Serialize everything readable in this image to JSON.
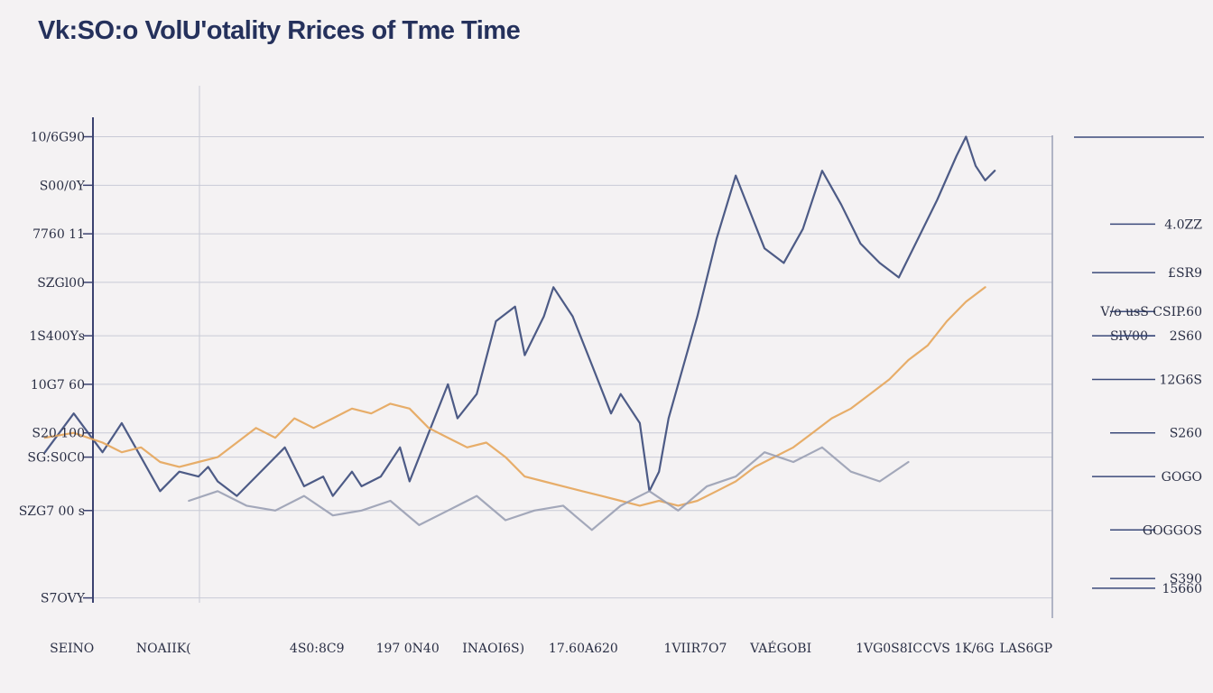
{
  "chart_data": {
    "type": "line",
    "title": "Vk:SO:o VolU'otality Rrices of Tme Time",
    "xlabel": "",
    "ylabel": "",
    "ylim": [
      0,
      10
    ],
    "xlim": [
      0,
      100
    ],
    "grid": true,
    "y_ticks": [
      {
        "value": 9.6,
        "label": "10/6G90"
      },
      {
        "value": 8.6,
        "label": "S00/0Y"
      },
      {
        "value": 7.6,
        "label": "7760  11"
      },
      {
        "value": 6.6,
        "label": "SZGl00"
      },
      {
        "value": 5.5,
        "label": "1S400Ys"
      },
      {
        "value": 4.5,
        "label": "10G7 60"
      },
      {
        "value": 3.5,
        "label": "S20 100"
      },
      {
        "value": 3.0,
        "label": "SG:S0C0"
      },
      {
        "value": 1.9,
        "label": "SZG7 00 s"
      },
      {
        "value": 0.1,
        "label": "S7OVY"
      }
    ],
    "x_ticks": [
      {
        "value": -4.5,
        "label": "SEINO"
      },
      {
        "value": 4.5,
        "label": "NOAIIK("
      },
      {
        "value": 20.5,
        "label": "4S0:8C9"
      },
      {
        "value": 29.5,
        "label": "197 0N40"
      },
      {
        "value": 38.5,
        "label": "INAOI6S)"
      },
      {
        "value": 47.5,
        "label": "17.60A620"
      },
      {
        "value": 59.5,
        "label": "1VIIR7O7"
      },
      {
        "value": 68.5,
        "label": "VAÉGOBI"
      },
      {
        "value": 79.5,
        "label": "1VG0S8IC"
      },
      {
        "value": 86.5,
        "label": "CVS 1K/6G"
      },
      {
        "value": 94.5,
        "label": "LAS6GP"
      }
    ],
    "right_labels": [
      {
        "value": 7.8,
        "label": "4.0ZZ"
      },
      {
        "value": 6.8,
        "label": "£SR9"
      },
      {
        "value": 6.0,
        "label": "V/o usS  CSIP.60"
      },
      {
        "value": 5.5,
        "label": "SlV00"
      },
      {
        "value": 5.5,
        "label": "2S60"
      },
      {
        "value": 4.6,
        "label": "12G6S"
      },
      {
        "value": 3.5,
        "label": "S260"
      },
      {
        "value": 2.6,
        "label": "GOGO"
      },
      {
        "value": 1.5,
        "label": "GOGGOS"
      },
      {
        "value": 0.3,
        "label": "15660"
      },
      {
        "value": 0.5,
        "label": "S390"
      }
    ],
    "series": [
      {
        "name": "Navy",
        "color": "#3b4a7a",
        "x": [
          -5,
          -2,
          1,
          3,
          5,
          7,
          9,
          11,
          12,
          13,
          15,
          17,
          20,
          22,
          24,
          25,
          27,
          28,
          30,
          32,
          33,
          35,
          37,
          38,
          40,
          42,
          44,
          45,
          47,
          48,
          50,
          52,
          54,
          55,
          57,
          58,
          59,
          60,
          61,
          63,
          65,
          67,
          68,
          70,
          72,
          74,
          76,
          78,
          80,
          82,
          84,
          86,
          88,
          90,
          91,
          92,
          93,
          94
        ],
        "y": [
          3.1,
          3.9,
          3.1,
          3.7,
          3.0,
          2.3,
          2.7,
          2.6,
          2.8,
          2.5,
          2.2,
          2.6,
          3.2,
          2.4,
          2.6,
          2.2,
          2.7,
          2.4,
          2.6,
          3.2,
          2.5,
          3.5,
          4.5,
          3.8,
          4.3,
          5.8,
          6.1,
          5.1,
          5.9,
          6.5,
          5.9,
          4.9,
          3.9,
          4.3,
          3.7,
          2.3,
          2.7,
          3.8,
          4.5,
          5.9,
          7.5,
          8.8,
          8.3,
          7.3,
          7.0,
          7.7,
          8.9,
          8.2,
          7.4,
          7.0,
          6.7,
          7.5,
          8.3,
          9.2,
          9.6,
          9.0,
          8.7,
          8.9
        ]
      },
      {
        "name": "Orange",
        "color": "#e6a55a",
        "x": [
          -5,
          -2,
          1,
          3,
          5,
          7,
          9,
          11,
          13,
          15,
          17,
          19,
          21,
          23,
          25,
          27,
          29,
          31,
          33,
          35,
          37,
          39,
          41,
          43,
          45,
          47,
          49,
          51,
          53,
          55,
          57,
          59,
          61,
          63,
          65,
          67,
          69,
          71,
          73,
          75,
          77,
          79,
          81,
          83,
          85,
          87,
          89,
          91,
          93
        ],
        "y": [
          3.4,
          3.5,
          3.3,
          3.1,
          3.2,
          2.9,
          2.8,
          2.9,
          3.0,
          3.3,
          3.6,
          3.4,
          3.8,
          3.6,
          3.8,
          4.0,
          3.9,
          4.1,
          4.0,
          3.6,
          3.4,
          3.2,
          3.3,
          3.0,
          2.6,
          2.5,
          2.4,
          2.3,
          2.2,
          2.1,
          2.0,
          2.1,
          2.0,
          2.1,
          2.3,
          2.5,
          2.8,
          3.0,
          3.2,
          3.5,
          3.8,
          4.0,
          4.3,
          4.6,
          5.0,
          5.3,
          5.8,
          6.2,
          6.5
        ]
      },
      {
        "name": "Gray",
        "color": "#9aa0b4",
        "x": [
          10,
          13,
          16,
          19,
          22,
          25,
          28,
          31,
          34,
          37,
          40,
          43,
          46,
          49,
          52,
          55,
          58,
          61,
          64,
          67,
          70,
          73,
          76,
          79,
          82,
          85
        ],
        "y": [
          2.1,
          2.3,
          2.0,
          1.9,
          2.2,
          1.8,
          1.9,
          2.1,
          1.6,
          1.9,
          2.2,
          1.7,
          1.9,
          2.0,
          1.5,
          2.0,
          2.3,
          1.9,
          2.4,
          2.6,
          3.1,
          2.9,
          3.2,
          2.7,
          2.5,
          2.9
        ]
      }
    ]
  }
}
